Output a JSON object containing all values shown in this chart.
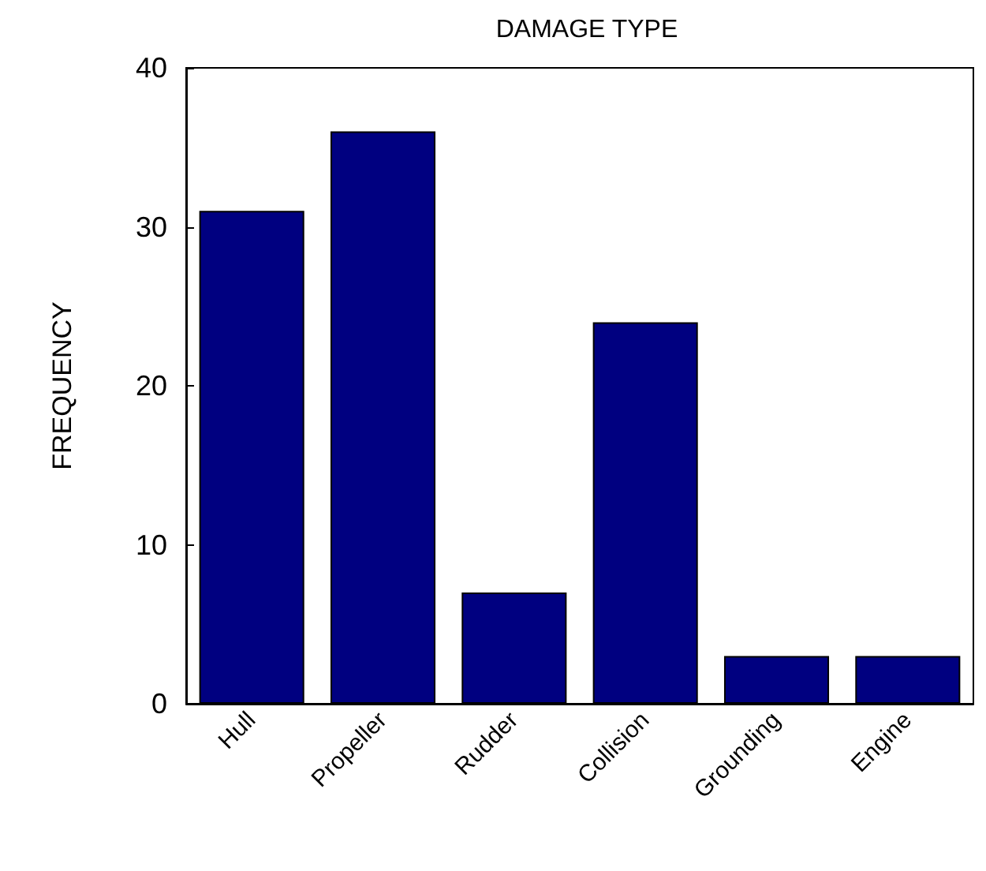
{
  "chart_data": {
    "type": "bar",
    "title": "DAMAGE TYPE",
    "ylabel": "FREQUENCY",
    "categories": [
      "Hull",
      "Propeller",
      "Rudder",
      "Collision",
      "Grounding",
      "Engine"
    ],
    "values": [
      31,
      36,
      7,
      24,
      3,
      3
    ],
    "color": "#000080",
    "ylim": [
      0,
      40
    ],
    "yticks": [
      0,
      10,
      20,
      30,
      40
    ]
  }
}
